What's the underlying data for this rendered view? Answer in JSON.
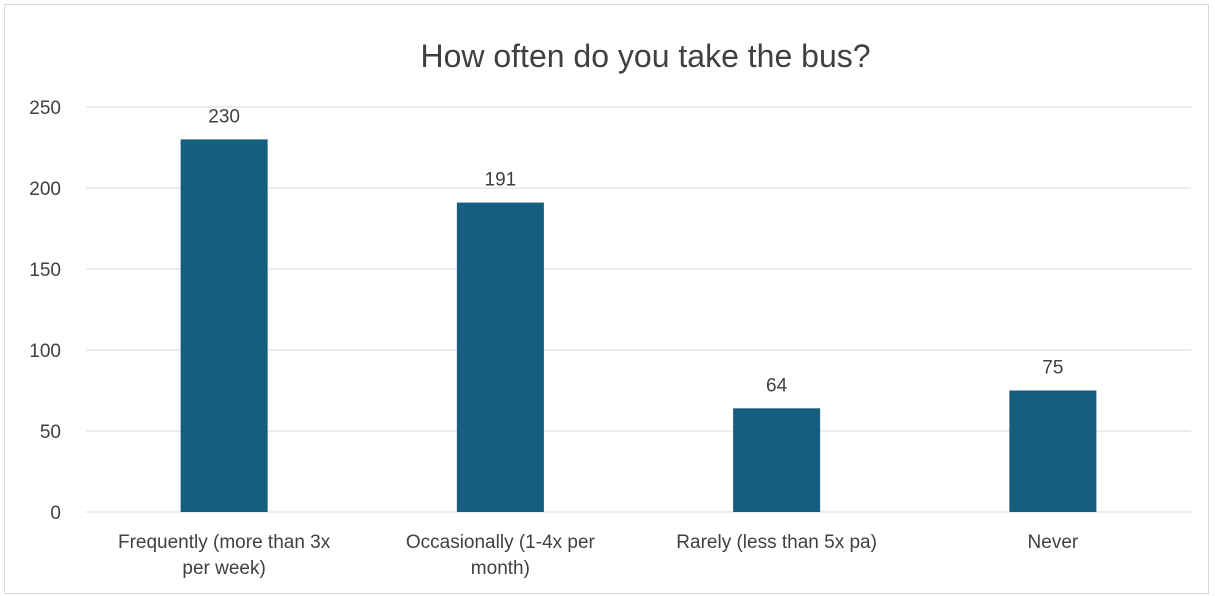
{
  "chart_data": {
    "type": "bar",
    "title": "How often do you take the bus?",
    "categories": [
      [
        "Frequently (more than 3x",
        "per week)"
      ],
      [
        "Occasionally (1-4x per",
        "month)"
      ],
      [
        "Rarely (less than 5x pa)"
      ],
      [
        "Never"
      ]
    ],
    "values": [
      230,
      191,
      64,
      75
    ],
    "data_labels": [
      "230",
      "191",
      "64",
      "75"
    ],
    "ylim": [
      0,
      250
    ],
    "yticks": [
      0,
      50,
      100,
      150,
      200,
      250
    ],
    "xlabel": "",
    "ylabel": "",
    "grid": true,
    "legend": "none",
    "bar_color": "#165e80"
  }
}
